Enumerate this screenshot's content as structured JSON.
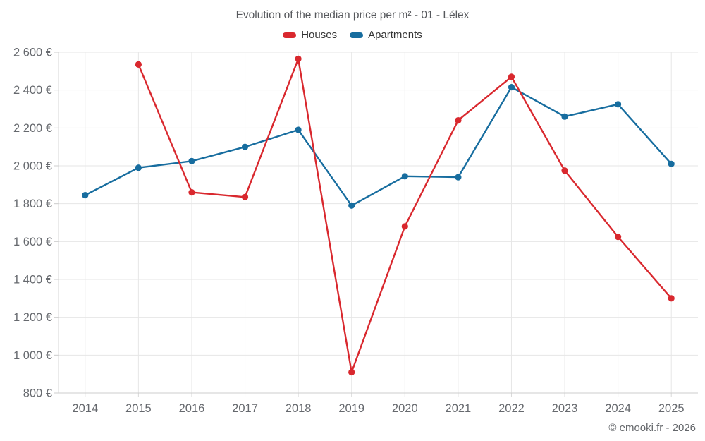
{
  "chart_data": {
    "type": "line",
    "title": "Evolution of the median price per m² - 01 - Lélex",
    "categories": [
      "2014",
      "2015",
      "2016",
      "2017",
      "2018",
      "2019",
      "2020",
      "2021",
      "2022",
      "2023",
      "2024",
      "2025"
    ],
    "series": [
      {
        "name": "Houses",
        "color": "#d9282e",
        "values": [
          null,
          2535,
          1860,
          1835,
          2565,
          910,
          1680,
          2240,
          2470,
          1975,
          1625,
          1300
        ]
      },
      {
        "name": "Apartments",
        "color": "#176d9f",
        "values": [
          1845,
          1990,
          2025,
          2100,
          2190,
          1790,
          1945,
          1940,
          2415,
          2260,
          2325,
          2010
        ]
      }
    ],
    "xlabel": "",
    "ylabel": "",
    "ylim": [
      800,
      2600
    ],
    "ytick_step": 200,
    "yticks": [
      {
        "value": 800,
        "label": "800 €"
      },
      {
        "value": 1000,
        "label": "1 000 €"
      },
      {
        "value": 1200,
        "label": "1 200 €"
      },
      {
        "value": 1400,
        "label": "1 400 €"
      },
      {
        "value": 1600,
        "label": "1 600 €"
      },
      {
        "value": 1800,
        "label": "1 800 €"
      },
      {
        "value": 2000,
        "label": "2 000 €"
      },
      {
        "value": 2200,
        "label": "2 200 €"
      },
      {
        "value": 2400,
        "label": "2 400 €"
      },
      {
        "value": 2600,
        "label": "2 600 €"
      }
    ],
    "grid": true,
    "legend_position": "top"
  },
  "footer": {
    "credit": "© emooki.fr - 2026"
  }
}
